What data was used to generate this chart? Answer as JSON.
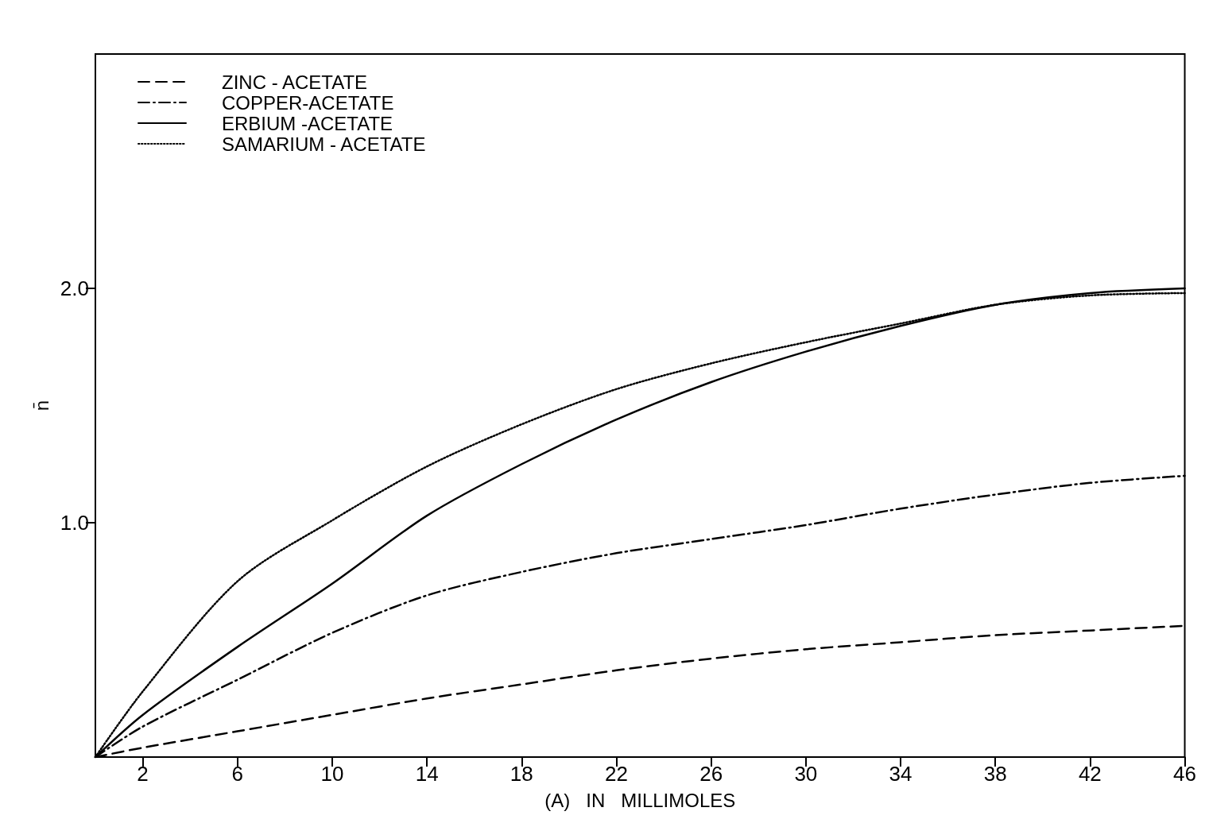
{
  "chart_data": {
    "type": "line",
    "xlabel": "(A)   IN   MILLIMOLES",
    "ylabel": "n̄",
    "xlim": [
      0,
      46
    ],
    "xticks": [
      2,
      6,
      10,
      14,
      18,
      22,
      26,
      30,
      34,
      38,
      42,
      46
    ],
    "ylim": [
      0,
      3
    ],
    "yticks": [
      {
        "value": 1,
        "label": "1.0"
      },
      {
        "value": 2,
        "label": "2.0"
      }
    ],
    "x": [
      0,
      2,
      6,
      10,
      14,
      18,
      22,
      26,
      30,
      34,
      38,
      42,
      46
    ],
    "legend": "top left",
    "marker": "none",
    "grid": false,
    "series": [
      {
        "name": "ZINC - ACETATE",
        "color": "#000000",
        "line_style": "dashed",
        "values": [
          0,
          0.04,
          0.11,
          0.18,
          0.25,
          0.31,
          0.37,
          0.42,
          0.46,
          0.49,
          0.52,
          0.54,
          0.56
        ]
      },
      {
        "name": "COPPER-ACETATE",
        "color": "#000000",
        "line_style": "dashdot",
        "values": [
          0,
          0.13,
          0.33,
          0.53,
          0.69,
          0.79,
          0.87,
          0.93,
          0.99,
          1.06,
          1.12,
          1.17,
          1.2
        ]
      },
      {
        "name": "ERBIUM -ACETATE",
        "color": "#000000",
        "line_style": "solid",
        "values": [
          0,
          0.18,
          0.47,
          0.74,
          1.03,
          1.25,
          1.44,
          1.6,
          1.73,
          1.84,
          1.93,
          1.98,
          2.0
        ]
      },
      {
        "name": "SAMARIUM - ACETATE",
        "color": "#000000",
        "line_style": "dotted",
        "values": [
          0,
          0.28,
          0.75,
          1.01,
          1.24,
          1.42,
          1.57,
          1.68,
          1.77,
          1.85,
          1.93,
          1.97,
          1.98
        ]
      }
    ]
  }
}
